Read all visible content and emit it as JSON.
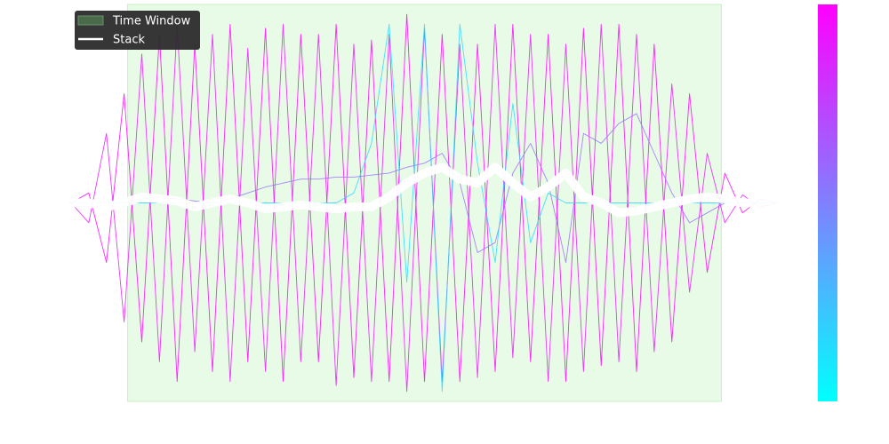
{
  "chart_data": {
    "type": "line",
    "x": [
      0,
      2.5,
      5,
      7.5,
      10,
      12.5,
      15,
      17.5,
      20,
      22.5,
      25,
      27.5,
      30,
      32.5,
      35,
      37.5,
      40,
      42.5,
      45,
      47.5,
      50,
      52.5,
      55,
      57.5,
      60,
      62.5,
      65,
      67.5,
      70,
      72.5,
      75,
      77.5,
      80,
      82.5,
      85,
      87.5,
      90,
      92.5,
      95,
      97.5,
      100
    ],
    "xlim": [
      0,
      100
    ],
    "ylim": [
      -1,
      1
    ],
    "time_window": {
      "label": "Time Window",
      "range": [
        8,
        92
      ],
      "color": "#e8fbe6",
      "legend_color": "#4a6b4a"
    },
    "series": [
      {
        "color": "#ff00ff",
        "values": [
          0,
          0.05,
          -0.3,
          0.55,
          -0.7,
          0.85,
          -0.9,
          0.8,
          -0.85,
          0.9,
          -0.8,
          0.88,
          -0.9,
          0.85,
          -0.8,
          0.9,
          -0.88,
          0.82,
          -0.9,
          0.95,
          -0.9,
          0.85,
          -0.9,
          0.8,
          -0.85,
          0.9,
          -0.8,
          0.85,
          -0.9,
          0.88,
          -0.82,
          0.9,
          -0.85,
          0.8,
          -0.7,
          0.55,
          -0.35,
          0.15,
          -0.05,
          0.02,
          0
        ]
      },
      {
        "color": "#e619ff",
        "values": [
          0,
          -0.1,
          0.35,
          -0.6,
          0.75,
          -0.8,
          0.9,
          -0.75,
          0.85,
          -0.9,
          0.78,
          -0.85,
          0.9,
          -0.8,
          0.85,
          -0.92,
          0.8,
          -0.9,
          0.85,
          -0.95,
          0.88,
          -0.9,
          0.8,
          -0.88,
          0.9,
          -0.78,
          0.85,
          -0.9,
          0.8,
          -0.85,
          0.9,
          -0.8,
          0.85,
          -0.75,
          0.6,
          -0.45,
          0.25,
          -0.1,
          0.04,
          -0.02,
          0
        ]
      },
      {
        "color": "#9a70ff",
        "values": [
          0,
          0,
          0,
          0,
          0.02,
          0.03,
          0.02,
          0.01,
          0,
          0.02,
          0.05,
          0.08,
          0.1,
          0.12,
          0.12,
          0.13,
          0.13,
          0.14,
          0.15,
          0.18,
          0.2,
          0.25,
          0.1,
          -0.25,
          -0.2,
          0.15,
          0.3,
          0.1,
          -0.3,
          0.35,
          0.3,
          0.4,
          0.45,
          0.25,
          0.05,
          -0.1,
          -0.05,
          0,
          0,
          0,
          0
        ]
      },
      {
        "color": "#30d8ff",
        "values": [
          0,
          0,
          0,
          0,
          0,
          0,
          0,
          0,
          0,
          0,
          0,
          0,
          0,
          0,
          0,
          0,
          0.05,
          0.3,
          0.9,
          -0.4,
          0.9,
          -0.95,
          0.9,
          0.2,
          -0.3,
          0.5,
          -0.2,
          0.05,
          0,
          0,
          0,
          0,
          0,
          0,
          0,
          0,
          0,
          0,
          0,
          0,
          0
        ]
      },
      {
        "name": "Stack",
        "color": "#ffffff",
        "values": [
          0,
          0,
          -0.02,
          0,
          0.03,
          0.02,
          0.01,
          -0.02,
          0,
          0.02,
          0,
          -0.03,
          -0.02,
          -0.01,
          -0.02,
          -0.03,
          -0.02,
          -0.02,
          0.03,
          0.1,
          0.15,
          0.18,
          0.12,
          0.1,
          0.18,
          0.1,
          0.03,
          0.08,
          0.15,
          0.03,
          0,
          -0.05,
          -0.04,
          -0.02,
          0,
          0.02,
          0.03,
          0.02,
          0,
          0,
          0
        ]
      }
    ],
    "colorbar": {
      "colors": [
        "#00ffff",
        "#8080ff",
        "#ff00ff"
      ]
    },
    "legend": "upper left"
  }
}
